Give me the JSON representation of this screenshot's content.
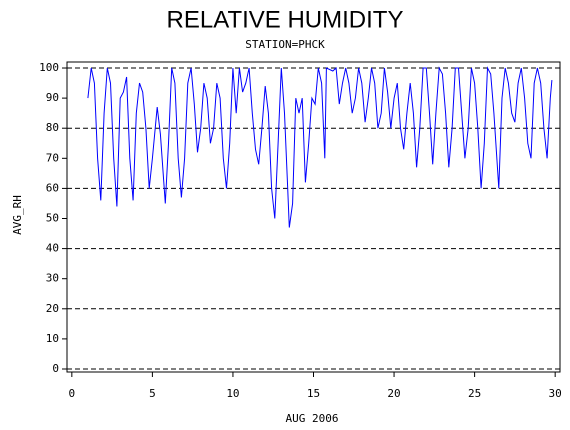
{
  "chart_data": {
    "type": "line",
    "title": "RELATIVE HUMIDITY",
    "subtitle": "STATION=PHCK",
    "x_label": "AUG 2006",
    "y_label": "AVG_RH",
    "xlim": [
      -0.3,
      30.3
    ],
    "ylim": [
      -1,
      102
    ],
    "xticks": [
      0,
      5,
      10,
      15,
      20,
      25,
      30
    ],
    "yticks": [
      0,
      10,
      20,
      30,
      40,
      50,
      60,
      70,
      80,
      90,
      100
    ],
    "grid_lines": [
      0,
      20,
      40,
      60,
      80,
      100
    ],
    "series": [
      {
        "color": "#0000ff",
        "x": [
          1.0,
          1.2,
          1.4,
          1.6,
          1.8,
          2.0,
          2.2,
          2.4,
          2.6,
          2.8,
          3.0,
          3.2,
          3.4,
          3.6,
          3.8,
          4.0,
          4.2,
          4.4,
          4.6,
          4.8,
          5.0,
          5.3,
          5.5,
          5.8,
          6.0,
          6.2,
          6.4,
          6.6,
          6.8,
          7.0,
          7.2,
          7.4,
          7.6,
          7.8,
          8.0,
          8.2,
          8.4,
          8.6,
          8.8,
          9.0,
          9.2,
          9.4,
          9.6,
          9.8,
          10.0,
          10.2,
          10.4,
          10.6,
          10.8,
          11.0,
          11.2,
          11.4,
          11.6,
          11.8,
          12.0,
          12.2,
          12.4,
          12.6,
          12.8,
          13.0,
          13.2,
          13.4,
          13.5,
          13.7,
          13.9,
          14.1,
          14.3,
          14.5,
          14.7,
          14.9,
          15.1,
          15.3,
          15.5,
          15.7,
          15.8,
          16.2,
          16.4,
          16.6,
          16.8,
          17.0,
          17.2,
          17.4,
          17.6,
          17.8,
          18.0,
          18.2,
          18.4,
          18.6,
          18.8,
          19.0,
          19.2,
          19.4,
          19.6,
          19.8,
          20.0,
          20.2,
          20.4,
          20.6,
          20.8,
          21.0,
          21.2,
          21.4,
          21.6,
          21.8,
          22.0,
          22.2,
          22.4,
          22.6,
          22.8,
          23.0,
          23.2,
          23.4,
          23.6,
          23.8,
          24.0,
          24.2,
          24.4,
          24.6,
          24.8,
          25.0,
          25.2,
          25.4,
          25.6,
          25.8,
          26.0,
          26.2,
          26.5,
          26.7,
          26.9,
          27.1,
          27.3,
          27.5,
          27.7,
          27.9,
          28.1,
          28.3,
          28.5,
          28.7,
          28.9,
          29.1,
          29.3,
          29.5,
          29.7,
          29.8
        ],
        "values": [
          90,
          100,
          95,
          70,
          56,
          85,
          100,
          95,
          70,
          54,
          90,
          92,
          97,
          70,
          56,
          85,
          95,
          92,
          80,
          60,
          70,
          87,
          78,
          55,
          75,
          100,
          95,
          70,
          57,
          70,
          95,
          100,
          88,
          72,
          80,
          95,
          90,
          75,
          80,
          95,
          90,
          70,
          60,
          75,
          100,
          85,
          100,
          92,
          95,
          100,
          85,
          73,
          68,
          80,
          94,
          85,
          60,
          50,
          75,
          100,
          85,
          60,
          47,
          55,
          90,
          85,
          90,
          62,
          75,
          90,
          88,
          100,
          95,
          70,
          100,
          99,
          100,
          88,
          95,
          100,
          95,
          85,
          90,
          100,
          95,
          82,
          90,
          100,
          95,
          80,
          85,
          100,
          92,
          80,
          90,
          95,
          80,
          73,
          85,
          95,
          85,
          67,
          80,
          100,
          100,
          85,
          68,
          85,
          100,
          98,
          85,
          67,
          80,
          100,
          100,
          85,
          70,
          80,
          100,
          95,
          80,
          60,
          75,
          100,
          98,
          85,
          60,
          90,
          100,
          95,
          85,
          82,
          95,
          100,
          90,
          75,
          70,
          95,
          100,
          95,
          80,
          70,
          90,
          96
        ]
      }
    ]
  }
}
